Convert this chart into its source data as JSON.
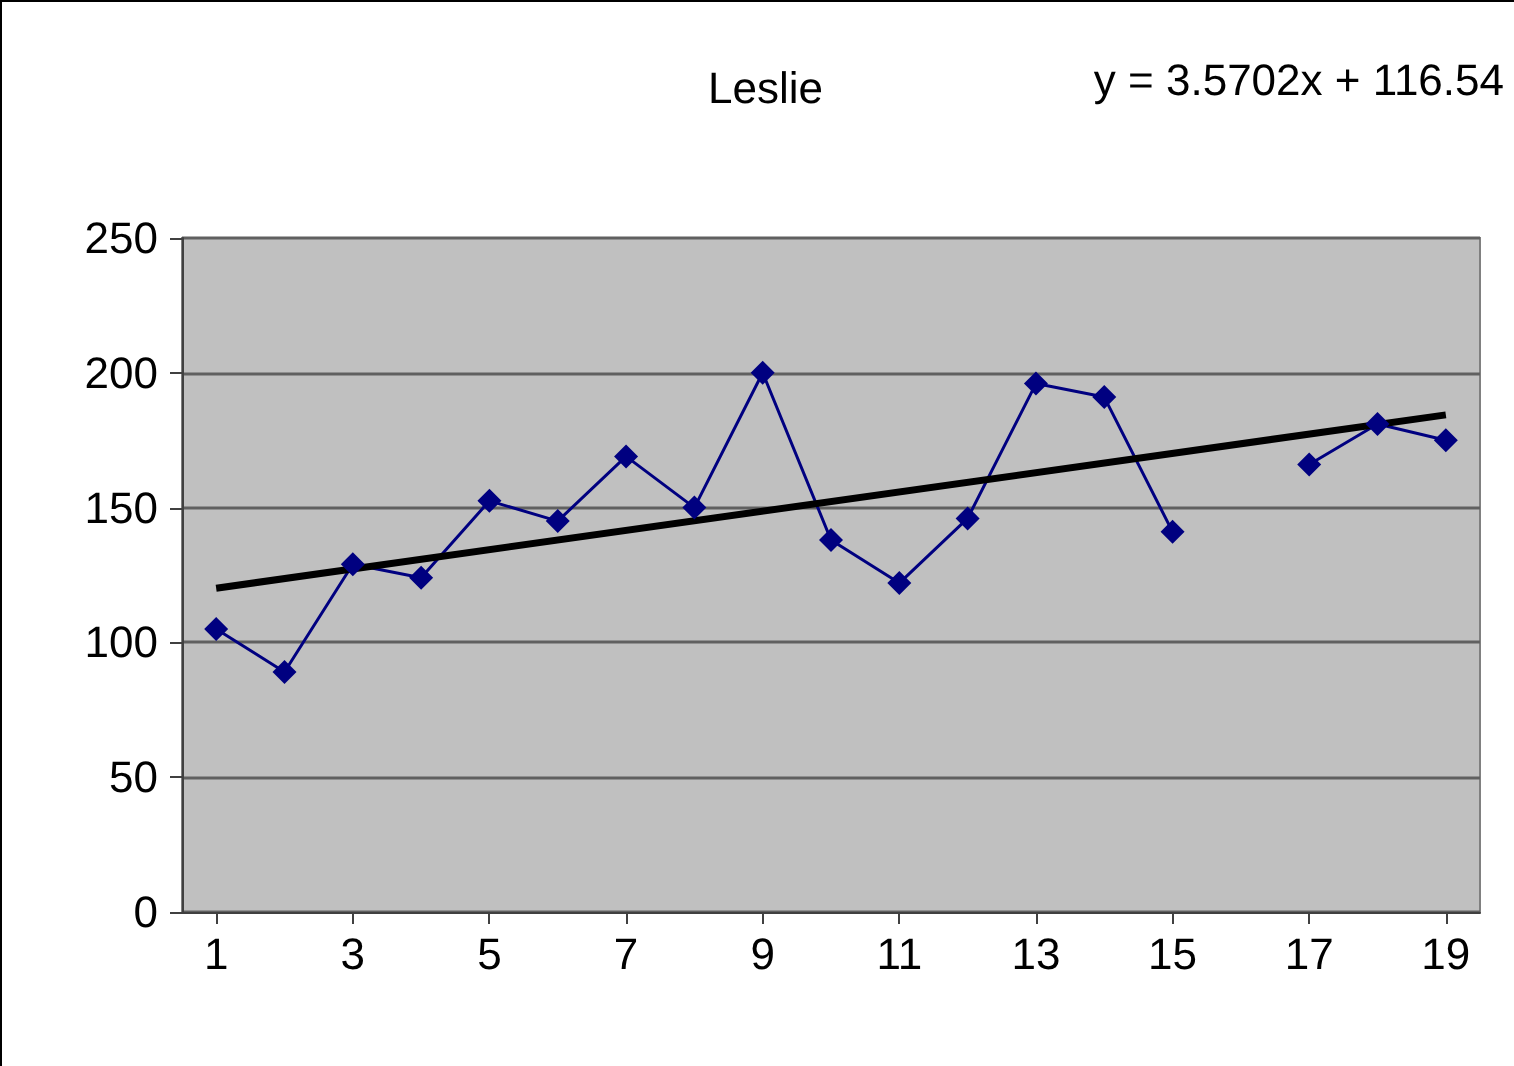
{
  "chart_data": {
    "type": "line",
    "title": "Leslie",
    "annotations": [
      "y = 3.5702x + 116.54"
    ],
    "x": [
      1,
      2,
      3,
      4,
      5,
      6,
      7,
      8,
      9,
      10,
      11,
      12,
      13,
      14,
      15,
      16,
      17,
      18,
      19
    ],
    "series": [
      {
        "color": "#000080",
        "marker": "diamond",
        "values": [
          105,
          89,
          129,
          124,
          152.5,
          145,
          169,
          150,
          200,
          138,
          122,
          146,
          196,
          191,
          141,
          null,
          166,
          181,
          175
        ]
      },
      {
        "color": "#000000",
        "marker": "none",
        "x": [
          1,
          19
        ],
        "values": [
          120.1,
          184.4
        ]
      }
    ],
    "xlim": [
      0.5,
      19.5
    ],
    "xticks": [
      1,
      3,
      5,
      7,
      9,
      11,
      13,
      15,
      17,
      19
    ],
    "ylim": [
      0,
      250
    ],
    "yticks": [
      0,
      50,
      100,
      150,
      200,
      250
    ],
    "grid": "y"
  }
}
